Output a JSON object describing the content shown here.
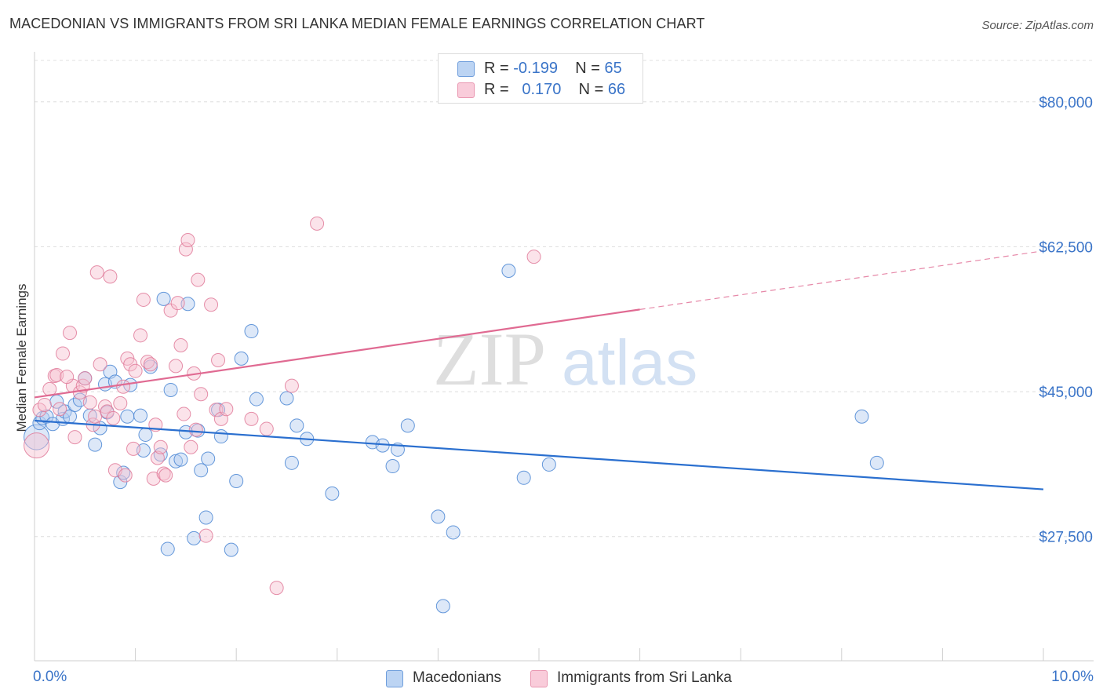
{
  "header": {
    "title": "MACEDONIAN VS IMMIGRANTS FROM SRI LANKA MEDIAN FEMALE EARNINGS CORRELATION CHART",
    "source": "Source: ZipAtlas.com"
  },
  "watermark": {
    "zip": "ZIP",
    "atlas": "atlas"
  },
  "legend": {
    "rows": [
      {
        "r_label": "R = ",
        "r_value": "-0.199",
        "n_label": "N = ",
        "n_value": "65",
        "color": "#a9c8f0"
      },
      {
        "r_label": "R = ",
        "r_value": "0.170",
        "n_label": "N = ",
        "n_value": "66",
        "color": "#f5b8cb"
      }
    ]
  },
  "bottom_legend": {
    "x_min_label": "0.0%",
    "x_max_label": "10.0%",
    "items": [
      {
        "label": "Macedonians",
        "color": "#a9c8f0"
      },
      {
        "label": "Immigrants from Sri Lanka",
        "color": "#f5b8cb"
      }
    ]
  },
  "chart_data": {
    "type": "scatter",
    "title": "MACEDONIAN VS IMMIGRANTS FROM SRI LANKA MEDIAN FEMALE EARNINGS CORRELATION CHART",
    "xlabel": "",
    "ylabel": "Median Female Earnings",
    "xlim": [
      0,
      10
    ],
    "ylim": [
      12500,
      85000
    ],
    "y_ticks": [
      {
        "value": 80000,
        "label": "$80,000"
      },
      {
        "value": 62500,
        "label": "$62,500"
      },
      {
        "value": 45000,
        "label": "$45,000"
      },
      {
        "value": 27500,
        "label": "$27,500"
      }
    ],
    "x_tick_values": [
      0,
      1,
      2,
      3,
      4,
      5,
      6,
      7,
      8,
      9,
      10
    ],
    "grid": true,
    "series": [
      {
        "name": "Macedonians",
        "stroke": "#4a86d4",
        "fill": "#b3cdf0",
        "line_color": "#2a6fcf",
        "trend": {
          "x0": 0.0,
          "y0": 41500,
          "x1": 10.0,
          "y1": 33200,
          "solid_until": 10.0
        },
        "points": [
          [
            0.02,
            39500
          ],
          [
            0.05,
            41200
          ],
          [
            0.08,
            41800
          ],
          [
            0.12,
            42000
          ],
          [
            0.18,
            41100
          ],
          [
            0.22,
            43800
          ],
          [
            0.28,
            41700
          ],
          [
            0.3,
            42600
          ],
          [
            0.35,
            42000
          ],
          [
            0.4,
            43400
          ],
          [
            0.45,
            44000
          ],
          [
            0.5,
            46600
          ],
          [
            0.55,
            42100
          ],
          [
            0.6,
            38600
          ],
          [
            0.65,
            40600
          ],
          [
            0.7,
            45900
          ],
          [
            0.72,
            42500
          ],
          [
            0.75,
            47400
          ],
          [
            0.8,
            46200
          ],
          [
            0.85,
            34100
          ],
          [
            0.88,
            35200
          ],
          [
            0.92,
            42000
          ],
          [
            0.95,
            45800
          ],
          [
            1.05,
            42100
          ],
          [
            1.08,
            37900
          ],
          [
            1.1,
            39800
          ],
          [
            1.15,
            48000
          ],
          [
            1.25,
            37400
          ],
          [
            1.28,
            56200
          ],
          [
            1.32,
            26000
          ],
          [
            1.35,
            45200
          ],
          [
            1.4,
            36600
          ],
          [
            1.45,
            36800
          ],
          [
            1.5,
            40100
          ],
          [
            1.52,
            55600
          ],
          [
            1.58,
            27300
          ],
          [
            1.62,
            40300
          ],
          [
            1.65,
            35500
          ],
          [
            1.7,
            29800
          ],
          [
            1.72,
            36900
          ],
          [
            1.82,
            42800
          ],
          [
            1.85,
            39600
          ],
          [
            1.95,
            25900
          ],
          [
            2.0,
            34200
          ],
          [
            2.05,
            49000
          ],
          [
            2.15,
            52300
          ],
          [
            2.2,
            44100
          ],
          [
            2.5,
            44200
          ],
          [
            2.55,
            36400
          ],
          [
            2.6,
            40900
          ],
          [
            2.7,
            39300
          ],
          [
            2.95,
            32700
          ],
          [
            3.35,
            38900
          ],
          [
            3.45,
            38500
          ],
          [
            3.55,
            36000
          ],
          [
            3.6,
            38000
          ],
          [
            3.7,
            40900
          ],
          [
            4.0,
            29900
          ],
          [
            4.05,
            19100
          ],
          [
            4.15,
            28000
          ],
          [
            4.7,
            59600
          ],
          [
            4.85,
            34600
          ],
          [
            5.1,
            36200
          ],
          [
            8.2,
            42000
          ],
          [
            8.35,
            36400
          ]
        ]
      },
      {
        "name": "Immigrants from Sri Lanka",
        "stroke": "#e07b9a",
        "fill": "#f7c1d1",
        "line_color": "#e06a92",
        "trend": {
          "x0": 0.0,
          "y0": 44300,
          "x1": 10.0,
          "y1": 62000,
          "solid_until": 6.0
        },
        "points": [
          [
            0.02,
            38500
          ],
          [
            0.05,
            42800
          ],
          [
            0.1,
            43400
          ],
          [
            0.15,
            45300
          ],
          [
            0.2,
            46900
          ],
          [
            0.22,
            47000
          ],
          [
            0.25,
            42900
          ],
          [
            0.28,
            49600
          ],
          [
            0.35,
            52100
          ],
          [
            0.38,
            45700
          ],
          [
            0.4,
            39500
          ],
          [
            0.45,
            44900
          ],
          [
            0.48,
            45700
          ],
          [
            0.5,
            46600
          ],
          [
            0.55,
            43700
          ],
          [
            0.58,
            41000
          ],
          [
            0.6,
            42000
          ],
          [
            0.62,
            59400
          ],
          [
            0.65,
            48300
          ],
          [
            0.7,
            43200
          ],
          [
            0.72,
            42600
          ],
          [
            0.75,
            58900
          ],
          [
            0.78,
            41800
          ],
          [
            0.8,
            35500
          ],
          [
            0.85,
            43600
          ],
          [
            0.88,
            45600
          ],
          [
            0.9,
            34900
          ],
          [
            0.92,
            49000
          ],
          [
            0.95,
            48300
          ],
          [
            0.98,
            38100
          ],
          [
            1.0,
            47500
          ],
          [
            1.05,
            51800
          ],
          [
            1.08,
            56100
          ],
          [
            1.12,
            48600
          ],
          [
            1.15,
            48300
          ],
          [
            1.18,
            34500
          ],
          [
            1.2,
            41000
          ],
          [
            1.22,
            37000
          ],
          [
            1.25,
            38300
          ],
          [
            1.28,
            35100
          ],
          [
            1.3,
            34900
          ],
          [
            1.35,
            54800
          ],
          [
            1.4,
            48100
          ],
          [
            1.42,
            55700
          ],
          [
            1.45,
            50600
          ],
          [
            1.5,
            62200
          ],
          [
            1.52,
            63300
          ],
          [
            1.55,
            38300
          ],
          [
            1.58,
            47200
          ],
          [
            1.6,
            40400
          ],
          [
            1.62,
            58500
          ],
          [
            1.65,
            44700
          ],
          [
            1.7,
            27600
          ],
          [
            1.75,
            55500
          ],
          [
            1.8,
            42800
          ],
          [
            1.82,
            48800
          ],
          [
            1.85,
            41700
          ],
          [
            1.9,
            42900
          ],
          [
            2.15,
            41700
          ],
          [
            2.3,
            40500
          ],
          [
            2.4,
            21300
          ],
          [
            2.55,
            45700
          ],
          [
            2.8,
            65300
          ],
          [
            4.95,
            61300
          ],
          [
            1.48,
            42300
          ],
          [
            0.32,
            46800
          ]
        ]
      }
    ]
  }
}
